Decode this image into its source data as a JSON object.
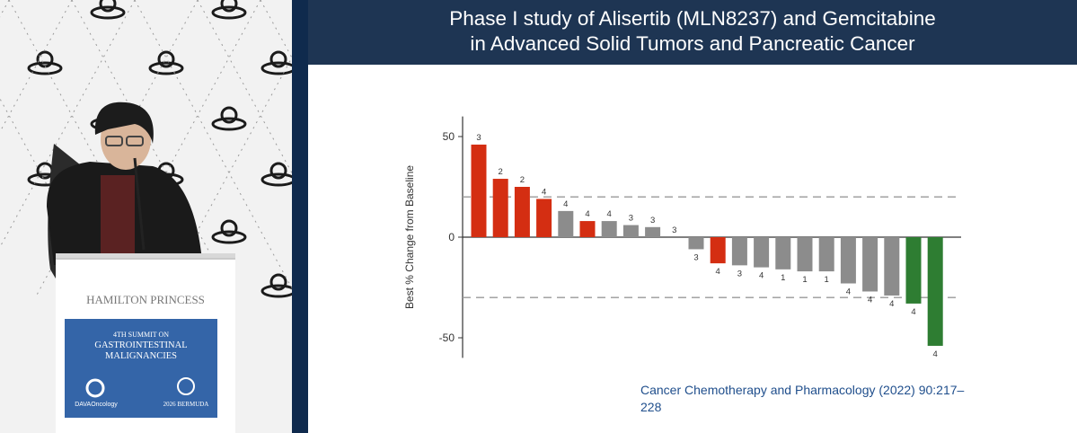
{
  "podium": {
    "sponsor_name": "HAMILTON PRINCESS",
    "summit_line1": "4TH SUMMIT ON",
    "summit_line2": "GASTROINTESTINAL",
    "summit_line3": "MALIGNANCIES",
    "logo_left": "DAVAOncology",
    "logo_right": "2026 BERMUDA"
  },
  "slide": {
    "title_line1": "Phase I study of Alisertib (MLN8237) and Gemcitabine",
    "title_line2": "in Advanced Solid Tumors and Pancreatic Cancer",
    "citation_line1": "Cancer Chemotherapy and Pharmacology (2022) 90:217–",
    "citation_line2": "228"
  },
  "colors": {
    "header_bg": "#1e3553",
    "red": "#d42e12",
    "gray": "#8c8c8c",
    "green": "#2e7d32"
  },
  "chart_data": {
    "type": "bar",
    "ylabel": "Best % Change from Baseline",
    "ylim": [
      -60,
      60
    ],
    "yticks": [
      50,
      0,
      -50
    ],
    "reference_lines": [
      20,
      -30
    ],
    "values": [
      46,
      29,
      25,
      19,
      13,
      8,
      8,
      6,
      5,
      0,
      -6,
      -13,
      -14,
      -15,
      -16,
      -17,
      -17,
      -23,
      -27,
      -29,
      -33,
      -54
    ],
    "labels": [
      "3",
      "2",
      "2",
      "4",
      "4",
      "4",
      "4",
      "3",
      "3",
      "3",
      "3",
      "4",
      "3",
      "4",
      "1",
      "1",
      "1",
      "4",
      "4",
      "4",
      "4",
      "4"
    ],
    "colors": [
      "red",
      "red",
      "red",
      "red",
      "gray",
      "red",
      "gray",
      "gray",
      "gray",
      "gray",
      "gray",
      "red",
      "gray",
      "gray",
      "gray",
      "gray",
      "gray",
      "gray",
      "gray",
      "gray",
      "green",
      "green"
    ]
  }
}
